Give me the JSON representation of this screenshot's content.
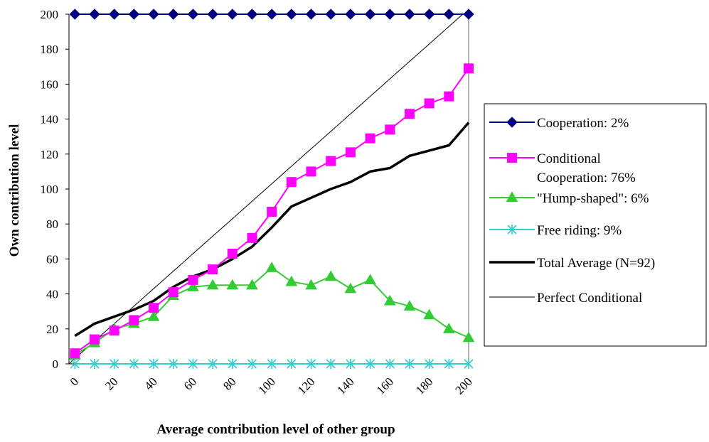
{
  "chart_data": {
    "type": "line",
    "title": "",
    "xlabel": "Average contribution level of other group",
    "ylabel": "Own contribution level",
    "x": [
      3,
      13,
      23,
      33,
      43,
      53,
      63,
      73,
      83,
      93,
      103,
      113,
      123,
      133,
      143,
      153,
      163,
      173,
      183,
      193,
      203
    ],
    "xlim": [
      0,
      203
    ],
    "ylim": [
      0,
      200
    ],
    "xticks": [
      "0",
      "20",
      "40",
      "60",
      "80",
      "100",
      "120",
      "140",
      "160",
      "180",
      "200"
    ],
    "yticks": [
      "0",
      "20",
      "40",
      "60",
      "80",
      "100",
      "120",
      "140",
      "160",
      "180",
      "200"
    ],
    "grid": false,
    "legend": "right",
    "series": [
      {
        "name": "Cooperation: 2%",
        "color": "#000080",
        "marker": "diamond",
        "values": [
          200,
          200,
          200,
          200,
          200,
          200,
          200,
          200,
          200,
          200,
          200,
          200,
          200,
          200,
          200,
          200,
          200,
          200,
          200,
          200,
          200
        ]
      },
      {
        "name": "Conditional Cooperation: 76%",
        "name_lines": [
          "Conditional",
          "Cooperation: 76%"
        ],
        "color": "#FF00FF",
        "marker": "square",
        "values": [
          6,
          14,
          19,
          25,
          32,
          41,
          48,
          54,
          63,
          72,
          87,
          104,
          110,
          116,
          121,
          129,
          134,
          143,
          149,
          153,
          169
        ]
      },
      {
        "name": "\"Hump-shaped\": 6%",
        "color": "#33CC33",
        "marker": "triangle",
        "values": [
          5,
          12,
          20,
          23,
          27,
          39,
          44,
          45,
          45,
          45,
          55,
          47,
          45,
          50,
          43,
          48,
          36,
          33,
          28,
          20,
          15
        ]
      },
      {
        "name": "Free riding: 9%",
        "color": "#33CCCC",
        "marker": "x",
        "values": [
          0,
          0,
          0,
          0,
          0,
          0,
          0,
          0,
          0,
          0,
          0,
          0,
          0,
          0,
          0,
          0,
          0,
          0,
          0,
          0,
          0
        ]
      },
      {
        "name": "Total Average (N=92)",
        "color": "#000000",
        "marker": "none",
        "width": "thick",
        "values": [
          16,
          23,
          27,
          31,
          36,
          44,
          50,
          54,
          60,
          67,
          78,
          90,
          95,
          100,
          104,
          110,
          112,
          119,
          122,
          125,
          138
        ]
      },
      {
        "name": "Perfect Conditional",
        "color": "#000000",
        "marker": "none",
        "width": "thin",
        "values": [
          0,
          10,
          20,
          30,
          40,
          50,
          60,
          70,
          80,
          90,
          100,
          110,
          120,
          130,
          140,
          150,
          160,
          170,
          180,
          190,
          200
        ]
      }
    ]
  }
}
